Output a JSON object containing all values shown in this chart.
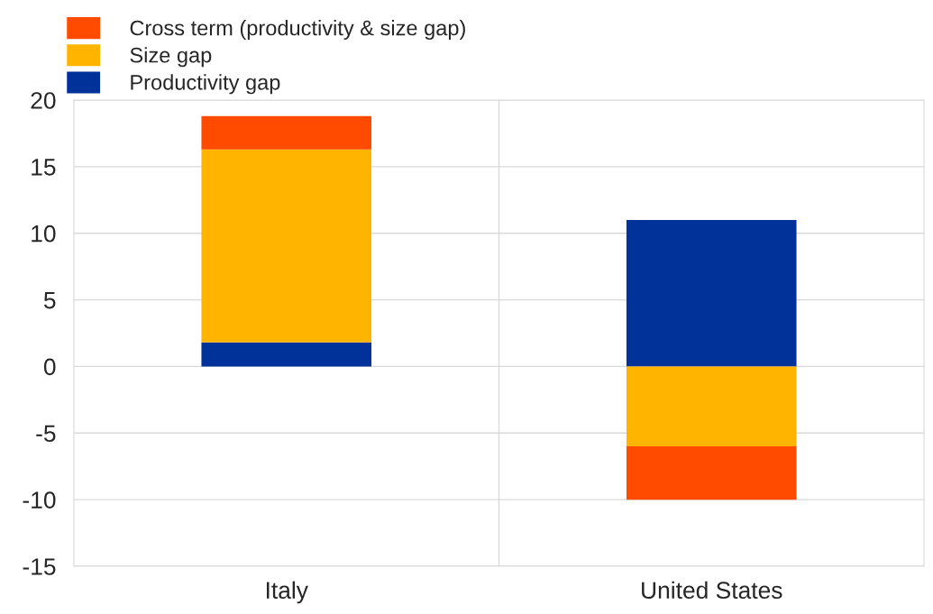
{
  "chart_data": {
    "type": "bar",
    "stacked": true,
    "categories": [
      "Italy",
      "United States"
    ],
    "series": [
      {
        "name": "Productivity gap",
        "color": "#003299",
        "values": [
          1.8,
          11.0
        ]
      },
      {
        "name": "Size gap",
        "color": "#ffb400",
        "values": [
          14.5,
          -6.0
        ]
      },
      {
        "name": "Cross term (productivity & size gap)",
        "color": "#ff4b00",
        "values": [
          2.5,
          -4.0
        ]
      }
    ],
    "ylim": [
      -15,
      20
    ],
    "yticks": [
      -15,
      -10,
      -5,
      0,
      5,
      10,
      15,
      20
    ],
    "grid": true,
    "legend": "top left"
  }
}
